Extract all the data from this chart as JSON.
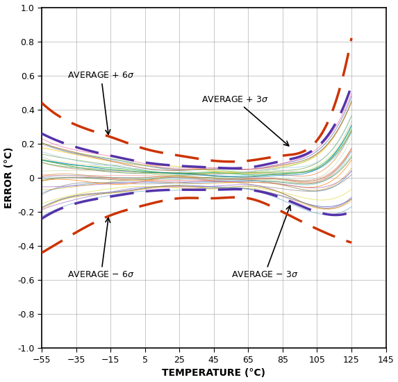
{
  "title": "",
  "xlabel": "TEMPERATURE (°C)",
  "ylabel": "ERROR (°C)",
  "xlim": [
    -55,
    145
  ],
  "ylim": [
    -1,
    1
  ],
  "xticks": [
    -55,
    -35,
    -15,
    5,
    25,
    45,
    65,
    85,
    105,
    125,
    145
  ],
  "yticks": [
    -1.0,
    -0.8,
    -0.6,
    -0.4,
    -0.2,
    0,
    0.2,
    0.4,
    0.6,
    0.8,
    1.0
  ],
  "temp_knots": [
    -55,
    -35,
    -15,
    5,
    25,
    45,
    65,
    85,
    105,
    125
  ],
  "avg_plus_6sigma": [
    0.44,
    0.31,
    0.24,
    0.17,
    0.13,
    0.1,
    0.1,
    0.13,
    0.22,
    0.82
  ],
  "avg_minus_6sigma": [
    -0.44,
    -0.32,
    -0.22,
    -0.16,
    -0.12,
    -0.12,
    -0.12,
    -0.2,
    -0.3,
    -0.38
  ],
  "avg_plus_3sigma": [
    0.26,
    0.18,
    0.13,
    0.09,
    0.07,
    0.06,
    0.06,
    0.1,
    0.18,
    0.54
  ],
  "avg_minus_3sigma": [
    -0.24,
    -0.15,
    -0.11,
    -0.08,
    -0.07,
    -0.07,
    -0.07,
    -0.12,
    -0.2,
    -0.2
  ],
  "num_individual_lines": 35,
  "line_colors": [
    "#4472C4",
    "#ED7D31",
    "#A9D18E",
    "#FF6B6B",
    "#70AD47",
    "#5B9BD5",
    "#FFC000",
    "#92D050",
    "#66CCEE",
    "#9966CC",
    "#AAAAAA",
    "#FF9999",
    "#88DDFF",
    "#DDDD44",
    "#888888",
    "#9DC3E6",
    "#F4B183",
    "#C5E0B4",
    "#B4C6E7",
    "#FFE699",
    "#548235",
    "#BB6633",
    "#4466AA",
    "#AA8800",
    "#557733",
    "#0070C0",
    "#FF7C00",
    "#00B050",
    "#FF66AA",
    "#999999",
    "#CC8844",
    "#66AACC",
    "#88BB44",
    "#AA66BB",
    "#DDAA44"
  ],
  "sigma6_color": "#CC3300",
  "sigma3_color": "#5533AA",
  "annotation_fontsize": 9,
  "label_fontsize": 10,
  "tick_fontsize": 9
}
